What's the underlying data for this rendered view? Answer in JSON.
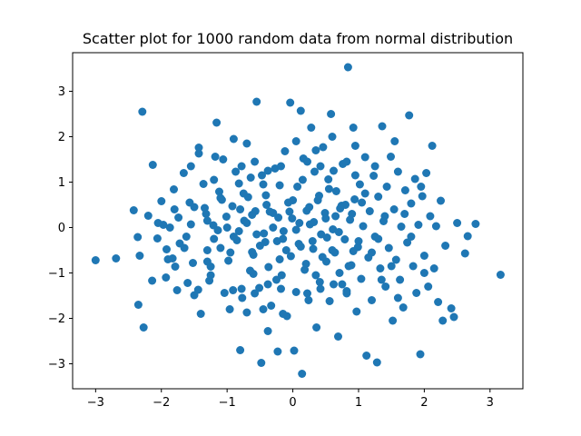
{
  "chart_data": {
    "type": "scatter",
    "title": "Scatter plot for 1000 random data from normal distribution",
    "xlabel": "",
    "ylabel": "",
    "xlim": [
      -3.35,
      3.5
    ],
    "ylim": [
      -3.55,
      3.85
    ],
    "xticks": [
      -3,
      -2,
      -1,
      0,
      1,
      2,
      3
    ],
    "yticks": [
      -3,
      -2,
      -1,
      0,
      1,
      2,
      3
    ],
    "grid": false,
    "marker_color": "#1f77b4",
    "series": [
      {
        "points": [
          [
            -3.0,
            -0.72
          ],
          [
            -2.69,
            -0.68
          ],
          [
            -2.29,
            2.55
          ],
          [
            -2.27,
            -2.2
          ],
          [
            -2.13,
            1.38
          ],
          [
            -2.35,
            -1.7
          ],
          [
            -2.42,
            0.38
          ],
          [
            -2.36,
            -0.21
          ],
          [
            -2.33,
            -0.62
          ],
          [
            -2.2,
            0.26
          ],
          [
            -2.14,
            -1.17
          ],
          [
            -2.06,
            -0.24
          ],
          [
            -2.0,
            0.58
          ],
          [
            -1.97,
            0.06
          ],
          [
            -1.93,
            -1.1
          ],
          [
            -1.92,
            -0.48
          ],
          [
            -1.87,
            0.0
          ],
          [
            -1.83,
            -0.68
          ],
          [
            -1.81,
            0.84
          ],
          [
            -1.79,
            -0.86
          ],
          [
            -1.76,
            -1.38
          ],
          [
            -1.74,
            0.22
          ],
          [
            -1.72,
            -0.35
          ],
          [
            -1.66,
            1.2
          ],
          [
            -1.62,
            -0.2
          ],
          [
            -1.6,
            -1.22
          ],
          [
            -1.57,
            0.55
          ],
          [
            -1.55,
            0.07
          ],
          [
            -1.52,
            -0.78
          ],
          [
            -1.5,
            -1.49
          ],
          [
            -1.44,
            -1.37
          ],
          [
            -1.43,
            1.63
          ],
          [
            -1.43,
            1.76
          ],
          [
            -1.36,
            0.96
          ],
          [
            -1.34,
            0.43
          ],
          [
            -1.32,
            0.3
          ],
          [
            -1.3,
            -0.5
          ],
          [
            -1.27,
            -1.17
          ],
          [
            -1.25,
            -0.86
          ],
          [
            -1.21,
            0.05
          ],
          [
            -1.2,
            -0.25
          ],
          [
            -1.18,
            1.56
          ],
          [
            -1.16,
            2.31
          ],
          [
            -1.14,
            -0.06
          ],
          [
            -1.12,
            0.79
          ],
          [
            -1.08,
            0.61
          ],
          [
            -1.06,
            1.5
          ],
          [
            -1.04,
            -1.44
          ],
          [
            -1.01,
            0.24
          ],
          [
            -0.98,
            -0.73
          ],
          [
            -0.96,
            -1.8
          ],
          [
            -0.92,
            0.47
          ],
          [
            -0.91,
            -1.38
          ],
          [
            -0.87,
            1.23
          ],
          [
            -0.85,
            -0.28
          ],
          [
            -0.82,
            0.97
          ],
          [
            -0.8,
            -2.7
          ],
          [
            -0.77,
            -1.55
          ],
          [
            -0.74,
            0.15
          ],
          [
            -0.7,
            -1.87
          ],
          [
            -0.68,
            0.67
          ],
          [
            -0.64,
            1.1
          ],
          [
            -0.62,
            -0.54
          ],
          [
            -0.6,
            -1.02
          ],
          [
            -0.57,
            0.36
          ],
          [
            -0.55,
            2.77
          ],
          [
            -0.51,
            -1.33
          ],
          [
            -0.48,
            -2.98
          ],
          [
            -0.47,
            1.15
          ],
          [
            -0.44,
            -0.13
          ],
          [
            -0.41,
            0.71
          ],
          [
            -0.38,
            -2.28
          ],
          [
            -0.37,
            -0.87
          ],
          [
            -0.33,
            -1.72
          ],
          [
            -0.3,
            0.32
          ],
          [
            -0.27,
            1.3
          ],
          [
            -0.24,
            -0.3
          ],
          [
            -0.23,
            -2.73
          ],
          [
            -0.2,
            0.93
          ],
          [
            -0.17,
            -1.05
          ],
          [
            -0.14,
            -0.08
          ],
          [
            -0.12,
            1.68
          ],
          [
            -0.09,
            -1.95
          ],
          [
            -0.07,
            0.55
          ],
          [
            -0.04,
            2.75
          ],
          [
            -0.03,
            -0.63
          ],
          [
            -0.01,
            0.2
          ],
          [
            0.02,
            -2.71
          ],
          [
            0.05,
            -1.42
          ],
          [
            0.07,
            0.9
          ],
          [
            0.09,
            -0.36
          ],
          [
            0.12,
            2.57
          ],
          [
            0.14,
            -3.22
          ],
          [
            0.16,
            1.52
          ],
          [
            0.18,
            -0.93
          ],
          [
            0.21,
            0.37
          ],
          [
            0.24,
            -1.6
          ],
          [
            0.26,
            0.07
          ],
          [
            0.28,
            2.2
          ],
          [
            0.31,
            -0.47
          ],
          [
            0.33,
            1.23
          ],
          [
            0.36,
            -2.2
          ],
          [
            0.38,
            0.6
          ],
          [
            0.41,
            -1.2
          ],
          [
            0.43,
            -0.15
          ],
          [
            0.46,
            1.77
          ],
          [
            0.49,
            0.32
          ],
          [
            0.51,
            -0.75
          ],
          [
            0.54,
            1.06
          ],
          [
            0.56,
            -1.62
          ],
          [
            0.58,
            2.5
          ],
          [
            0.61,
            -0.04
          ],
          [
            0.64,
            -0.55
          ],
          [
            0.66,
            0.8
          ],
          [
            0.69,
            -2.4
          ],
          [
            0.71,
            -1.0
          ],
          [
            0.74,
            0.48
          ],
          [
            0.76,
            1.4
          ],
          [
            0.79,
            -0.26
          ],
          [
            0.82,
            -1.4
          ],
          [
            0.84,
            3.53
          ],
          [
            0.87,
            0.17
          ],
          [
            0.89,
            -0.83
          ],
          [
            0.92,
            2.2
          ],
          [
            0.94,
            0.62
          ],
          [
            0.97,
            -1.85
          ],
          [
            0.99,
            -0.43
          ],
          [
            1.02,
            0.95
          ],
          [
            1.04,
            -1.13
          ],
          [
            1.07,
            0.03
          ],
          [
            1.1,
            1.55
          ],
          [
            1.12,
            -2.82
          ],
          [
            1.15,
            -0.66
          ],
          [
            1.17,
            0.36
          ],
          [
            1.2,
            -1.6
          ],
          [
            1.23,
            1.14
          ],
          [
            1.25,
            -0.2
          ],
          [
            1.28,
            -2.97
          ],
          [
            1.3,
            0.68
          ],
          [
            1.33,
            -0.9
          ],
          [
            1.36,
            2.23
          ],
          [
            1.38,
            0.14
          ],
          [
            1.41,
            -1.3
          ],
          [
            1.43,
            0.9
          ],
          [
            1.46,
            -0.45
          ],
          [
            1.49,
            1.56
          ],
          [
            1.52,
            -2.05
          ],
          [
            1.54,
            0.4
          ],
          [
            1.57,
            -0.71
          ],
          [
            1.6,
            1.23
          ],
          [
            1.63,
            -1.15
          ],
          [
            1.65,
            0.02
          ],
          [
            1.68,
            -1.76
          ],
          [
            1.71,
            0.82
          ],
          [
            1.74,
            -0.33
          ],
          [
            1.77,
            2.47
          ],
          [
            1.8,
            0.53
          ],
          [
            1.83,
            -0.85
          ],
          [
            1.86,
            1.07
          ],
          [
            1.88,
            -1.44
          ],
          [
            1.91,
            0.06
          ],
          [
            1.94,
            -2.79
          ],
          [
            1.97,
            0.69
          ],
          [
            2.0,
            -0.62
          ],
          [
            2.03,
            1.2
          ],
          [
            2.06,
            -1.3
          ],
          [
            2.09,
            0.25
          ],
          [
            2.12,
            1.8
          ],
          [
            2.15,
            -0.9
          ],
          [
            2.18,
            0.03
          ],
          [
            2.21,
            -1.64
          ],
          [
            2.25,
            0.59
          ],
          [
            2.28,
            -2.05
          ],
          [
            2.32,
            -0.4
          ],
          [
            2.41,
            -1.78
          ],
          [
            2.45,
            -1.97
          ],
          [
            2.5,
            0.1
          ],
          [
            2.62,
            -0.57
          ],
          [
            2.66,
            -0.19
          ],
          [
            2.78,
            0.08
          ],
          [
            3.16,
            -1.04
          ],
          [
            -0.9,
            -0.2
          ],
          [
            -0.7,
            0.1
          ],
          [
            -0.5,
            -0.4
          ],
          [
            -0.3,
            0.0
          ],
          [
            -0.1,
            -0.5
          ],
          [
            0.1,
            0.1
          ],
          [
            0.3,
            -0.3
          ],
          [
            0.5,
            0.2
          ],
          [
            0.7,
            -0.1
          ],
          [
            0.9,
            0.3
          ],
          [
            -0.8,
            0.4
          ],
          [
            -0.6,
            -0.6
          ],
          [
            -0.4,
            0.5
          ],
          [
            -0.2,
            -0.7
          ],
          [
            0.0,
            0.6
          ],
          [
            0.2,
            -0.8
          ],
          [
            0.4,
            0.7
          ],
          [
            0.6,
            -0.5
          ],
          [
            0.8,
            0.5
          ],
          [
            1.0,
            -0.3
          ],
          [
            -1.0,
            0.0
          ],
          [
            -0.95,
            -0.55
          ],
          [
            -0.75,
            0.75
          ],
          [
            -0.55,
            -0.15
          ],
          [
            -0.35,
            0.35
          ],
          [
            -0.15,
            -0.25
          ],
          [
            0.05,
            -0.05
          ],
          [
            0.25,
            0.45
          ],
          [
            0.45,
            -0.65
          ],
          [
            0.65,
            0.25
          ],
          [
            0.85,
            -0.85
          ],
          [
            1.05,
            0.55
          ],
          [
            -0.65,
            -0.95
          ],
          [
            -0.45,
            0.95
          ],
          [
            -0.25,
            -1.15
          ],
          [
            0.15,
            1.05
          ],
          [
            0.35,
            -1.05
          ],
          [
            0.55,
            0.85
          ],
          [
            0.75,
            -1.25
          ],
          [
            0.95,
            1.15
          ],
          [
            -1.1,
            -0.45
          ],
          [
            -1.3,
            0.15
          ],
          [
            -1.5,
            0.45
          ],
          [
            -1.1,
            0.65
          ],
          [
            -1.3,
            -0.75
          ],
          [
            1.2,
            -0.55
          ],
          [
            1.4,
            0.25
          ],
          [
            1.3,
            -0.25
          ],
          [
            1.5,
            -0.85
          ],
          [
            1.1,
            0.75
          ],
          [
            -0.05,
            0.35
          ],
          [
            0.12,
            -0.42
          ],
          [
            -0.22,
            0.22
          ],
          [
            0.32,
            0.12
          ],
          [
            -0.42,
            -0.32
          ],
          [
            0.52,
            -0.22
          ],
          [
            -0.62,
            0.28
          ],
          [
            0.72,
            0.42
          ],
          [
            -0.82,
            -0.08
          ],
          [
            0.92,
            -0.52
          ],
          [
            -0.18,
            1.35
          ],
          [
            0.22,
            1.45
          ],
          [
            -0.38,
            1.25
          ],
          [
            0.42,
            1.35
          ],
          [
            -0.58,
            1.45
          ],
          [
            0.62,
            1.25
          ],
          [
            -0.78,
            1.35
          ],
          [
            0.82,
            1.45
          ],
          [
            -0.18,
            -1.35
          ],
          [
            0.22,
            -1.45
          ],
          [
            -0.38,
            -1.25
          ],
          [
            0.42,
            -1.35
          ],
          [
            -0.58,
            -1.45
          ],
          [
            0.62,
            -1.25
          ],
          [
            -0.78,
            -1.35
          ],
          [
            0.82,
            -1.45
          ],
          [
            -1.2,
            1.05
          ],
          [
            1.25,
            1.35
          ],
          [
            -1.25,
            -1.05
          ],
          [
            1.35,
            -1.15
          ],
          [
            0.05,
            1.9
          ],
          [
            -0.15,
            -1.9
          ],
          [
            0.35,
            1.7
          ],
          [
            -0.45,
            -1.8
          ],
          [
            0.6,
            2.0
          ],
          [
            -0.7,
            1.85
          ],
          [
            -0.9,
            1.95
          ],
          [
            0.95,
            1.8
          ],
          [
            -1.4,
            -1.9
          ],
          [
            1.55,
            1.9
          ],
          [
            -1.65,
            -0.45
          ],
          [
            1.7,
            0.3
          ],
          [
            -1.8,
            0.4
          ],
          [
            1.8,
            -0.2
          ],
          [
            -1.9,
            -0.7
          ],
          [
            1.95,
            0.9
          ],
          [
            -2.05,
            0.1
          ],
          [
            2.0,
            -1.0
          ],
          [
            -1.55,
            1.35
          ],
          [
            1.6,
            -1.55
          ]
        ]
      }
    ]
  }
}
